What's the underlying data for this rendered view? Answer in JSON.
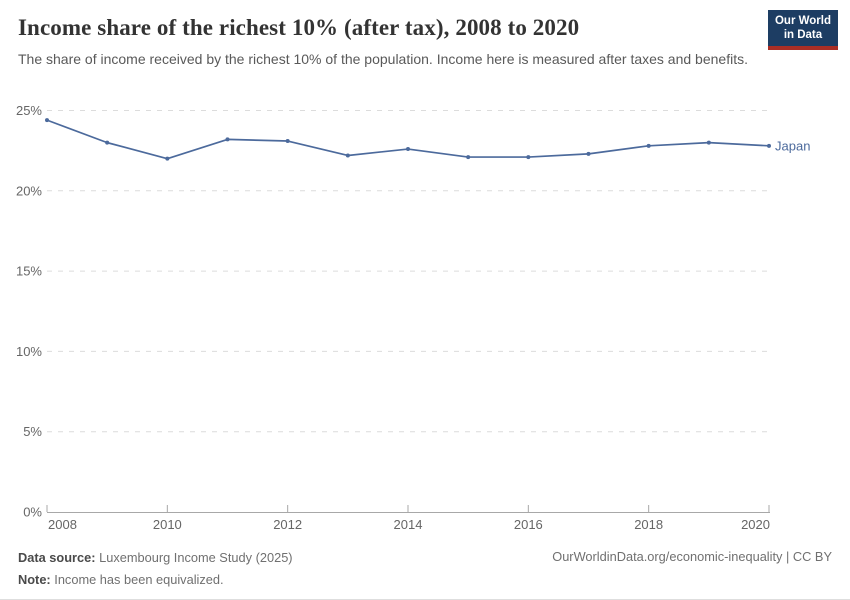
{
  "header": {
    "title": "Income share of the richest 10% (after tax), 2008 to 2020",
    "subtitle": "The share of income received by the richest 10% of the population. Income here is measured after taxes and benefits.",
    "logo_line1": "Our World",
    "logo_line2": "in Data"
  },
  "chart_data": {
    "type": "line",
    "title": "Income share of the richest 10% (after tax), 2008 to 2020",
    "x": [
      2008,
      2009,
      2010,
      2011,
      2012,
      2013,
      2014,
      2015,
      2016,
      2017,
      2018,
      2019,
      2020
    ],
    "series": [
      {
        "name": "Japan",
        "color": "#4c6a9c",
        "values": [
          24.4,
          23.0,
          22.0,
          23.2,
          23.1,
          22.2,
          22.6,
          22.1,
          22.1,
          22.3,
          22.8,
          23.0,
          22.8
        ]
      }
    ],
    "xlim": [
      2008,
      2020
    ],
    "ylim": [
      0,
      25
    ],
    "x_tick_labels": [
      "2008",
      "2010",
      "2012",
      "2014",
      "2016",
      "2018",
      "2020"
    ],
    "x_tick_values": [
      2008,
      2010,
      2012,
      2014,
      2016,
      2018,
      2020
    ],
    "y_tick_labels": [
      "0%",
      "5%",
      "10%",
      "15%",
      "20%",
      "25%"
    ],
    "y_tick_values": [
      0,
      5,
      10,
      15,
      20,
      25
    ],
    "grid": "horizontal-dashed",
    "legend": "line-end-label",
    "end_label": "Japan",
    "xlabel": "",
    "ylabel": ""
  },
  "footer": {
    "source_label": "Data source:",
    "source_value": " Luxembourg Income Study (2025)",
    "note_label": "Note:",
    "note_value": " Income has been equivalized.",
    "citation": "OurWorldinData.org/economic-inequality | CC BY"
  },
  "colors": {
    "series_line": "#4c6a9c",
    "logo_background": "#1d3d63",
    "logo_stripe": "#aa2e25",
    "gridline": "#dcdcdc",
    "axis": "#a8a8a8",
    "tick_label": "#666666"
  }
}
